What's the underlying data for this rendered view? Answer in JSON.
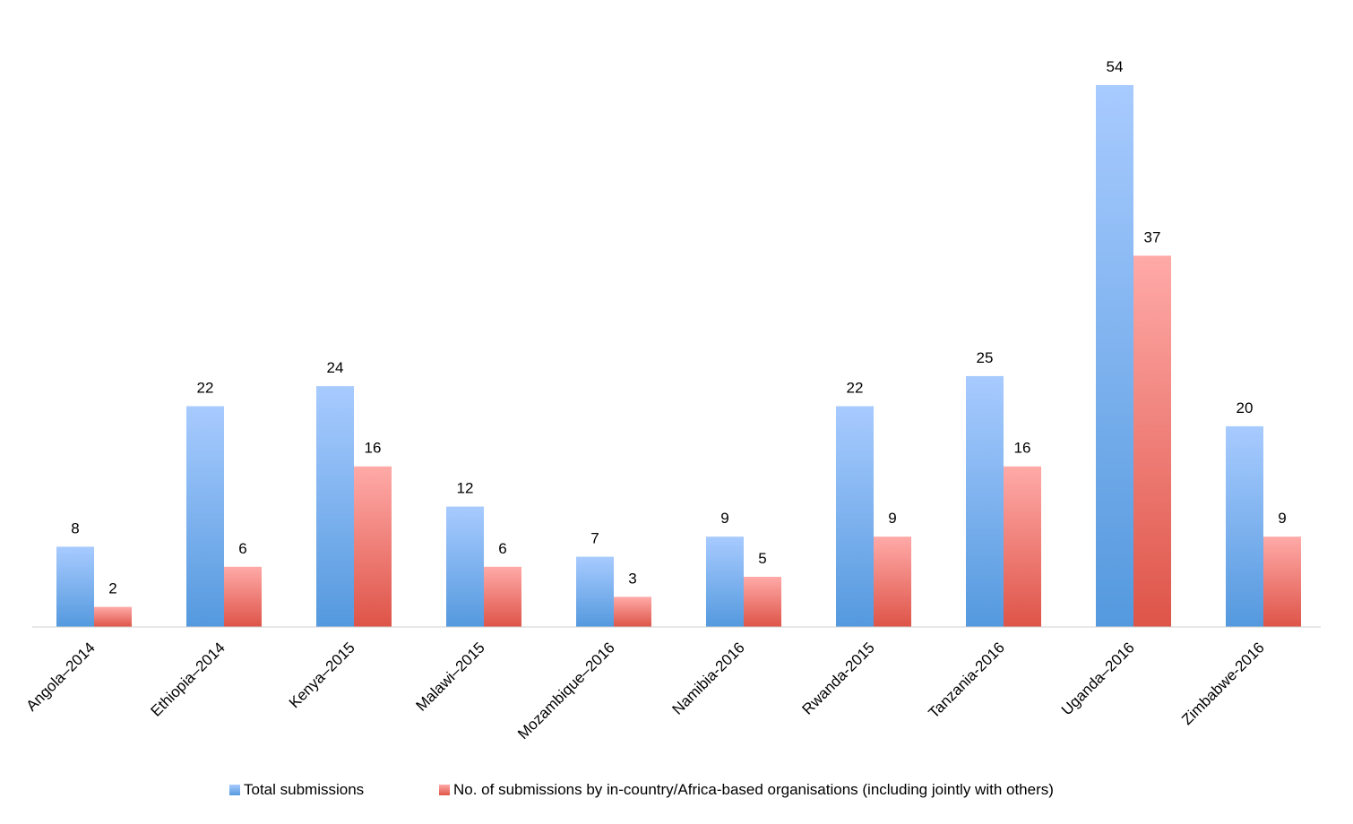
{
  "chart_data": {
    "type": "bar",
    "categories": [
      "Angola–2014",
      "Ethiopia–2014",
      "Kenya–2015",
      "Malawi–2015",
      "Mozambique–2016",
      "Namibia-2016",
      "Rwanda-2015",
      "Tanzania-2016",
      "Uganda–2016",
      "Zimbabwe-2016"
    ],
    "series": [
      {
        "name": "Total submissions",
        "values": [
          8,
          22,
          24,
          12,
          7,
          9,
          22,
          25,
          54,
          20
        ],
        "color_top": "#a8cbff",
        "color_bottom": "#5499de"
      },
      {
        "name": "No. of submissions by in-country/Africa-based organisations (including jointly with others)",
        "values": [
          2,
          6,
          16,
          6,
          3,
          5,
          9,
          16,
          37,
          9
        ],
        "color_top": "#ffaaa8",
        "color_bottom": "#de5448"
      }
    ],
    "title": "",
    "xlabel": "",
    "ylabel": "",
    "ylim": [
      0,
      54
    ],
    "grid": false,
    "legend_position": "bottom",
    "data_labels": true
  }
}
